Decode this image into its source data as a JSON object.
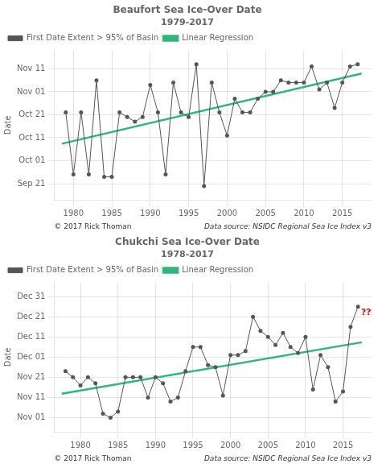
{
  "chart_data": [
    {
      "type": "line",
      "title": "Beaufort Sea Ice-Over Date",
      "subtitle": "1979-2017",
      "y_label": "Date",
      "series": [
        {
          "name": "First Date Extent > 95% of Basin",
          "color": "#555555",
          "marker": "circle",
          "x": [
            1979,
            1980,
            1981,
            1982,
            1983,
            1984,
            1985,
            1986,
            1987,
            1988,
            1989,
            1990,
            1991,
            1992,
            1993,
            1994,
            1995,
            1996,
            1997,
            1998,
            1999,
            2000,
            2001,
            2002,
            2003,
            2004,
            2005,
            2006,
            2007,
            2008,
            2009,
            2010,
            2011,
            2012,
            2013,
            2014,
            2015,
            2016,
            2017
          ],
          "values": [
            295,
            268,
            295,
            268,
            309,
            267,
            267,
            295,
            293,
            291,
            293,
            307,
            295,
            268,
            308,
            295,
            293,
            316,
            263,
            308,
            295,
            285,
            301,
            295,
            295,
            301,
            304,
            304,
            309,
            308,
            308,
            308,
            315,
            305,
            308,
            297,
            308,
            315,
            316
          ]
        },
        {
          "name": "Linear Regression",
          "color": "#2db87a",
          "marker": "none",
          "x": [
            1978.5,
            2017.5
          ],
          "values": [
            281.41,
            311.98
          ]
        }
      ],
      "xlim": [
        1977.5,
        2018.8
      ],
      "xticks": [
        1980,
        1985,
        1990,
        1995,
        2000,
        2005,
        2010,
        2015
      ],
      "ylim": [
        257,
        322
      ],
      "yticks": [
        {
          "value": 264,
          "label": "Sep 21"
        },
        {
          "value": 274,
          "label": "Oct 01"
        },
        {
          "value": 284,
          "label": "Oct 11"
        },
        {
          "value": 294,
          "label": "Oct 21"
        },
        {
          "value": 304,
          "label": "Nov 01"
        },
        {
          "value": 314,
          "label": "Nov 11"
        }
      ],
      "grid": true,
      "legend": "upper left",
      "annotations": [
        {
          "text": "© 2017 Rick Thoman"
        },
        {
          "text": "Data source: NSIDC Regional Sea Ice Index v3"
        }
      ]
    },
    {
      "type": "line",
      "title": "Chukchi Sea Ice-Over Date",
      "subtitle": "1978-2017",
      "y_label": "Date",
      "series": [
        {
          "name": "First Date Extent > 95% of Basin",
          "color": "#555555",
          "marker": "circle",
          "x": [
            1978,
            1979,
            1980,
            1981,
            1982,
            1983,
            1984,
            1985,
            1986,
            1987,
            1988,
            1989,
            1990,
            1991,
            1992,
            1993,
            1994,
            1995,
            1996,
            1997,
            1998,
            1999,
            2000,
            2001,
            2002,
            2003,
            2004,
            2005,
            2006,
            2007,
            2008,
            2009,
            2010,
            2011,
            2012,
            2013,
            2014,
            2015,
            2016,
            2017
          ],
          "values": [
            328,
            325,
            321,
            325,
            322,
            307,
            305,
            308,
            325,
            325,
            325,
            315,
            325,
            322,
            313,
            315,
            328,
            340,
            340,
            331,
            330,
            316,
            336,
            336,
            338,
            355,
            348,
            345,
            341,
            347,
            340,
            337,
            345,
            319,
            336,
            330,
            313,
            318,
            350,
            360
          ]
        },
        {
          "name": "Linear Regression",
          "color": "#2db87a",
          "marker": "none",
          "x": [
            1977.5,
            2017.5
          ],
          "values": [
            316.9,
            342.35
          ]
        }
      ],
      "xlim": [
        1976.5,
        2018.8
      ],
      "xticks": [
        1980,
        1985,
        1990,
        1995,
        2000,
        2005,
        2010,
        2015
      ],
      "ylim": [
        298,
        372
      ],
      "yticks": [
        {
          "value": 305,
          "label": "Nov 01"
        },
        {
          "value": 315,
          "label": "Nov 11"
        },
        {
          "value": 325,
          "label": "Nov 21"
        },
        {
          "value": 335,
          "label": "Dec 01"
        },
        {
          "value": 345,
          "label": "Dec 11"
        },
        {
          "value": 355,
          "label": "Dec 21"
        },
        {
          "value": 365,
          "label": "Dec 31"
        }
      ],
      "grid": true,
      "legend": "upper left",
      "annotations": [
        {
          "text": "??",
          "x": 2017.4,
          "y": 357,
          "color": "red"
        },
        {
          "text": "© 2017 Rick Thoman"
        },
        {
          "text": "Data source: NSIDC Regional Sea Ice Index v3"
        }
      ]
    }
  ]
}
